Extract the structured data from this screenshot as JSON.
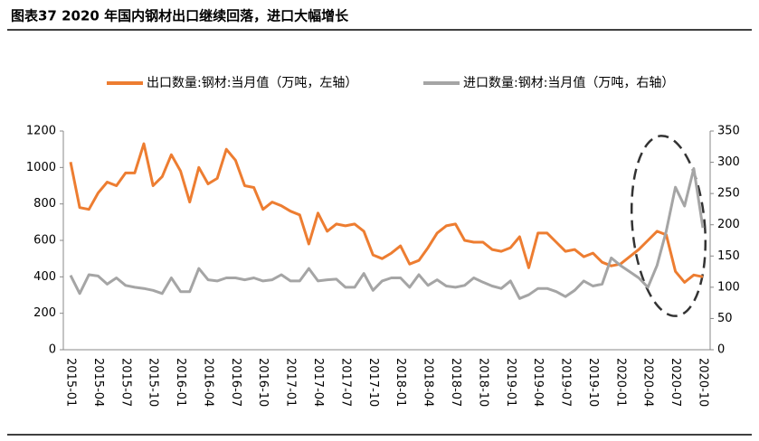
{
  "chart_data": {
    "type": "line",
    "title": "图表37    2020 年国内钢材出口继续回落，进口大幅增长",
    "categories": [
      "2015-01",
      null,
      null,
      "2015-04",
      null,
      null,
      "2015-07",
      null,
      null,
      "2015-10",
      null,
      null,
      "2016-01",
      null,
      null,
      "2016-04",
      null,
      null,
      "2016-07",
      null,
      null,
      "2016-10",
      null,
      null,
      "2017-01",
      null,
      null,
      "2017-04",
      null,
      null,
      "2017-07",
      null,
      null,
      "2017-10",
      null,
      null,
      "2018-01",
      null,
      null,
      "2018-04",
      null,
      null,
      "2018-07",
      null,
      null,
      "2018-10",
      null,
      null,
      "2019-01",
      null,
      null,
      "2019-04",
      null,
      null,
      "2019-07",
      null,
      null,
      "2019-10",
      null,
      null,
      "2020-01",
      null,
      null,
      "2020-04",
      null,
      null,
      "2020-07",
      null,
      null,
      "2020-10"
    ],
    "series": [
      {
        "name": "出口数量:钢材:当月值（万吨，左轴）",
        "color": "#ed7d31",
        "values": [
          1030,
          780,
          770,
          860,
          920,
          900,
          970,
          970,
          1130,
          900,
          950,
          1070,
          980,
          810,
          1000,
          910,
          940,
          1100,
          1040,
          900,
          890,
          770,
          810,
          790,
          760,
          740,
          580,
          750,
          650,
          690,
          680,
          690,
          650,
          520,
          500,
          530,
          570,
          470,
          490,
          560,
          640,
          680,
          690,
          600,
          590,
          590,
          550,
          540,
          560,
          620,
          450,
          640,
          640,
          590,
          540,
          550,
          510,
          530,
          480,
          460,
          470,
          510,
          550,
          600,
          650,
          630,
          430,
          370,
          410,
          400
        ]
      },
      {
        "name": "进口数量:钢材:当月值（万吨，右轴）",
        "color": "#a5a5a5",
        "axis": "y2",
        "values": [
          119,
          90,
          120,
          118,
          105,
          115,
          103,
          100,
          98,
          95,
          90,
          115,
          93,
          93,
          130,
          112,
          110,
          115,
          115,
          112,
          115,
          110,
          112,
          120,
          110,
          110,
          130,
          110,
          112,
          113,
          100,
          100,
          122,
          95,
          110,
          115,
          115,
          100,
          120,
          103,
          112,
          102,
          100,
          103,
          115,
          108,
          102,
          98,
          110,
          82,
          88,
          98,
          98,
          93,
          85,
          95,
          110,
          102,
          105,
          147,
          135,
          125,
          115,
          100,
          135,
          190,
          260,
          230,
          290,
          195
        ]
      }
    ],
    "ylim": [
      0,
      1200
    ],
    "yticks": [
      0,
      200,
      400,
      600,
      800,
      1000,
      1200
    ],
    "y2lim": [
      0,
      350
    ],
    "y2ticks": [
      0,
      50,
      100,
      150,
      200,
      250,
      300,
      350
    ],
    "grid": false
  }
}
